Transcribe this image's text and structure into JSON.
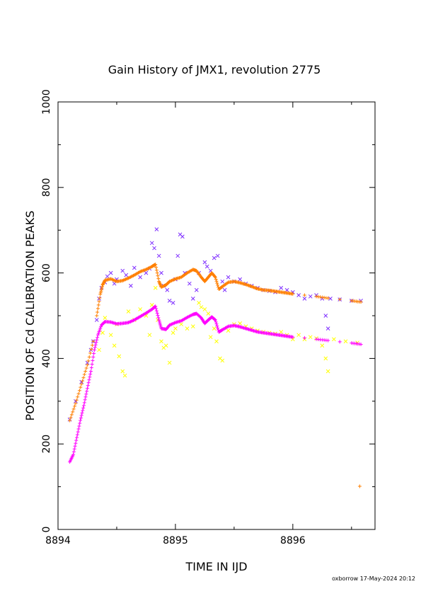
{
  "chart_data": {
    "type": "scatter",
    "title": "Gain History of JMX1, revolution 2775",
    "xlabel": "TIME IN IJD",
    "ylabel": "POSITION OF Cd CALIBRATION PEAKS",
    "xlim": [
      8894,
      8896.7
    ],
    "ylim": [
      0,
      1000
    ],
    "xticks": [
      8894,
      8895,
      8896
    ],
    "xtick_labels": [
      "8894",
      "8895",
      "8896"
    ],
    "yticks": [
      0,
      200,
      400,
      600,
      800,
      1000
    ],
    "ytick_labels": [
      "0",
      "200",
      "400",
      "600",
      "800",
      "1000"
    ],
    "grid": false,
    "legend": "none",
    "footer": "oxborrow 17-May-2024 20:12",
    "series": [
      {
        "color": "#7f2fff",
        "marker": "x",
        "points": [
          [
            8894.1,
            257
          ],
          [
            8894.15,
            300
          ],
          [
            8894.2,
            345
          ],
          [
            8894.25,
            390
          ],
          [
            8894.28,
            420
          ],
          [
            8894.3,
            440
          ],
          [
            8894.33,
            490
          ],
          [
            8894.35,
            540
          ],
          [
            8894.37,
            565
          ],
          [
            8894.4,
            578
          ],
          [
            8894.42,
            592
          ],
          [
            8894.45,
            600
          ],
          [
            8894.48,
            575
          ],
          [
            8894.5,
            585
          ],
          [
            8894.55,
            605
          ],
          [
            8894.58,
            595
          ],
          [
            8894.62,
            570
          ],
          [
            8894.65,
            612
          ],
          [
            8894.7,
            590
          ],
          [
            8894.75,
            600
          ],
          [
            8894.78,
            610
          ],
          [
            8894.8,
            670
          ],
          [
            8894.82,
            658
          ],
          [
            8894.84,
            702
          ],
          [
            8894.86,
            640
          ],
          [
            8894.88,
            600
          ],
          [
            8894.9,
            570
          ],
          [
            8894.93,
            560
          ],
          [
            8894.95,
            535
          ],
          [
            8894.98,
            530
          ],
          [
            8895.0,
            585
          ],
          [
            8895.02,
            640
          ],
          [
            8895.04,
            690
          ],
          [
            8895.06,
            685
          ],
          [
            8895.08,
            600
          ],
          [
            8895.12,
            575
          ],
          [
            8895.15,
            540
          ],
          [
            8895.18,
            560
          ],
          [
            8895.2,
            600
          ],
          [
            8895.25,
            625
          ],
          [
            8895.27,
            615
          ],
          [
            8895.3,
            605
          ],
          [
            8895.33,
            635
          ],
          [
            8895.36,
            640
          ],
          [
            8895.4,
            580
          ],
          [
            8895.42,
            560
          ],
          [
            8895.45,
            590
          ],
          [
            8895.5,
            580
          ],
          [
            8895.55,
            585
          ],
          [
            8895.6,
            575
          ],
          [
            8895.65,
            570
          ],
          [
            8895.7,
            565
          ],
          [
            8895.75,
            560
          ],
          [
            8895.8,
            558
          ],
          [
            8895.85,
            555
          ],
          [
            8895.9,
            565
          ],
          [
            8895.95,
            560
          ],
          [
            8896.0,
            555
          ],
          [
            8896.05,
            548
          ],
          [
            8896.1,
            540
          ],
          [
            8896.15,
            545
          ],
          [
            8896.2,
            548
          ],
          [
            8896.25,
            540
          ],
          [
            8896.28,
            500
          ],
          [
            8896.3,
            470
          ],
          [
            8896.32,
            540
          ],
          [
            8896.4,
            538
          ],
          [
            8896.5,
            535
          ],
          [
            8896.58,
            535
          ]
        ]
      },
      {
        "color": "#ff7f00",
        "marker": "+",
        "points": [
          [
            8894.1,
            255
          ],
          [
            8894.15,
            295
          ],
          [
            8894.2,
            340
          ],
          [
            8894.25,
            385
          ],
          [
            8894.3,
            440
          ],
          [
            8894.33,
            500
          ],
          [
            8894.36,
            550
          ],
          [
            8894.38,
            572
          ],
          [
            8894.4,
            583
          ],
          [
            8894.45,
            586
          ],
          [
            8894.5,
            580
          ],
          [
            8894.55,
            582
          ],
          [
            8894.6,
            588
          ],
          [
            8894.65,
            595
          ],
          [
            8894.7,
            603
          ],
          [
            8894.75,
            608
          ],
          [
            8894.8,
            615
          ],
          [
            8894.83,
            620
          ],
          [
            8894.86,
            580
          ],
          [
            8894.88,
            567
          ],
          [
            8894.92,
            572
          ],
          [
            8894.95,
            580
          ],
          [
            8895.0,
            586
          ],
          [
            8895.05,
            590
          ],
          [
            8895.1,
            600
          ],
          [
            8895.15,
            608
          ],
          [
            8895.18,
            605
          ],
          [
            8895.22,
            590
          ],
          [
            8895.25,
            580
          ],
          [
            8895.28,
            590
          ],
          [
            8895.31,
            600
          ],
          [
            8895.34,
            590
          ],
          [
            8895.37,
            562
          ],
          [
            8895.4,
            568
          ],
          [
            8895.45,
            578
          ],
          [
            8895.5,
            580
          ],
          [
            8895.55,
            577
          ],
          [
            8895.6,
            573
          ],
          [
            8895.65,
            568
          ],
          [
            8895.7,
            563
          ],
          [
            8895.75,
            560
          ],
          [
            8895.8,
            559
          ],
          [
            8895.85,
            557
          ],
          [
            8895.9,
            555
          ],
          [
            8895.95,
            553
          ],
          [
            8896.0,
            551
          ],
          [
            8896.1,
            548
          ],
          [
            8896.2,
            545
          ],
          [
            8896.3,
            541
          ],
          [
            8896.4,
            538
          ],
          [
            8896.5,
            535
          ],
          [
            8896.58,
            532
          ],
          [
            8896.57,
            101
          ]
        ]
      },
      {
        "color": "#ffff00",
        "marker": "x",
        "points": [
          [
            8894.35,
            420
          ],
          [
            8894.38,
            460
          ],
          [
            8894.4,
            495
          ],
          [
            8894.45,
            455
          ],
          [
            8894.48,
            430
          ],
          [
            8894.5,
            480
          ],
          [
            8894.52,
            405
          ],
          [
            8894.55,
            370
          ],
          [
            8894.57,
            360
          ],
          [
            8894.6,
            510
          ],
          [
            8894.65,
            490
          ],
          [
            8894.7,
            515
          ],
          [
            8894.75,
            500
          ],
          [
            8894.78,
            455
          ],
          [
            8894.8,
            525
          ],
          [
            8894.83,
            565
          ],
          [
            8894.85,
            490
          ],
          [
            8894.88,
            440
          ],
          [
            8894.9,
            425
          ],
          [
            8894.92,
            430
          ],
          [
            8894.95,
            390
          ],
          [
            8894.98,
            460
          ],
          [
            8895.0,
            470
          ],
          [
            8895.05,
            480
          ],
          [
            8895.1,
            470
          ],
          [
            8895.15,
            475
          ],
          [
            8895.2,
            530
          ],
          [
            8895.22,
            520
          ],
          [
            8895.25,
            515
          ],
          [
            8895.28,
            505
          ],
          [
            8895.3,
            450
          ],
          [
            8895.33,
            470
          ],
          [
            8895.35,
            440
          ],
          [
            8895.38,
            400
          ],
          [
            8895.4,
            395
          ],
          [
            8895.45,
            465
          ],
          [
            8895.5,
            480
          ],
          [
            8895.55,
            482
          ],
          [
            8895.6,
            475
          ],
          [
            8895.65,
            470
          ],
          [
            8895.7,
            465
          ],
          [
            8895.75,
            462
          ],
          [
            8895.8,
            460
          ],
          [
            8895.85,
            458
          ],
          [
            8895.9,
            462
          ],
          [
            8895.95,
            455
          ],
          [
            8896.0,
            445
          ],
          [
            8896.05,
            455
          ],
          [
            8896.1,
            445
          ],
          [
            8896.15,
            450
          ],
          [
            8896.2,
            447
          ],
          [
            8896.25,
            430
          ],
          [
            8896.28,
            400
          ],
          [
            8896.3,
            370
          ],
          [
            8896.35,
            445
          ],
          [
            8896.45,
            440
          ],
          [
            8896.55,
            437
          ]
        ]
      },
      {
        "color": "#ff00ff",
        "marker": "+",
        "points": [
          [
            8894.1,
            158
          ],
          [
            8894.13,
            175
          ],
          [
            8894.16,
            215
          ],
          [
            8894.19,
            255
          ],
          [
            8894.22,
            290
          ],
          [
            8894.25,
            330
          ],
          [
            8894.28,
            370
          ],
          [
            8894.31,
            420
          ],
          [
            8894.34,
            455
          ],
          [
            8894.37,
            478
          ],
          [
            8894.4,
            486
          ],
          [
            8894.45,
            485
          ],
          [
            8894.5,
            481
          ],
          [
            8894.55,
            482
          ],
          [
            8894.6,
            484
          ],
          [
            8894.65,
            490
          ],
          [
            8894.7,
            498
          ],
          [
            8894.75,
            506
          ],
          [
            8894.8,
            515
          ],
          [
            8894.83,
            522
          ],
          [
            8894.86,
            490
          ],
          [
            8894.88,
            470
          ],
          [
            8894.92,
            468
          ],
          [
            8894.95,
            478
          ],
          [
            8895.0,
            484
          ],
          [
            8895.05,
            488
          ],
          [
            8895.1,
            496
          ],
          [
            8895.15,
            503
          ],
          [
            8895.18,
            505
          ],
          [
            8895.22,
            495
          ],
          [
            8895.25,
            482
          ],
          [
            8895.28,
            490
          ],
          [
            8895.31,
            497
          ],
          [
            8895.34,
            490
          ],
          [
            8895.37,
            462
          ],
          [
            8895.4,
            467
          ],
          [
            8895.45,
            475
          ],
          [
            8895.5,
            477
          ],
          [
            8895.55,
            474
          ],
          [
            8895.6,
            470
          ],
          [
            8895.65,
            466
          ],
          [
            8895.7,
            462
          ],
          [
            8895.75,
            460
          ],
          [
            8895.8,
            458
          ],
          [
            8895.85,
            456
          ],
          [
            8895.9,
            454
          ],
          [
            8895.95,
            452
          ],
          [
            8896.0,
            450
          ],
          [
            8896.1,
            448
          ],
          [
            8896.2,
            445
          ],
          [
            8896.3,
            442
          ],
          [
            8896.4,
            439
          ],
          [
            8896.5,
            436
          ],
          [
            8896.58,
            433
          ]
        ]
      }
    ]
  }
}
